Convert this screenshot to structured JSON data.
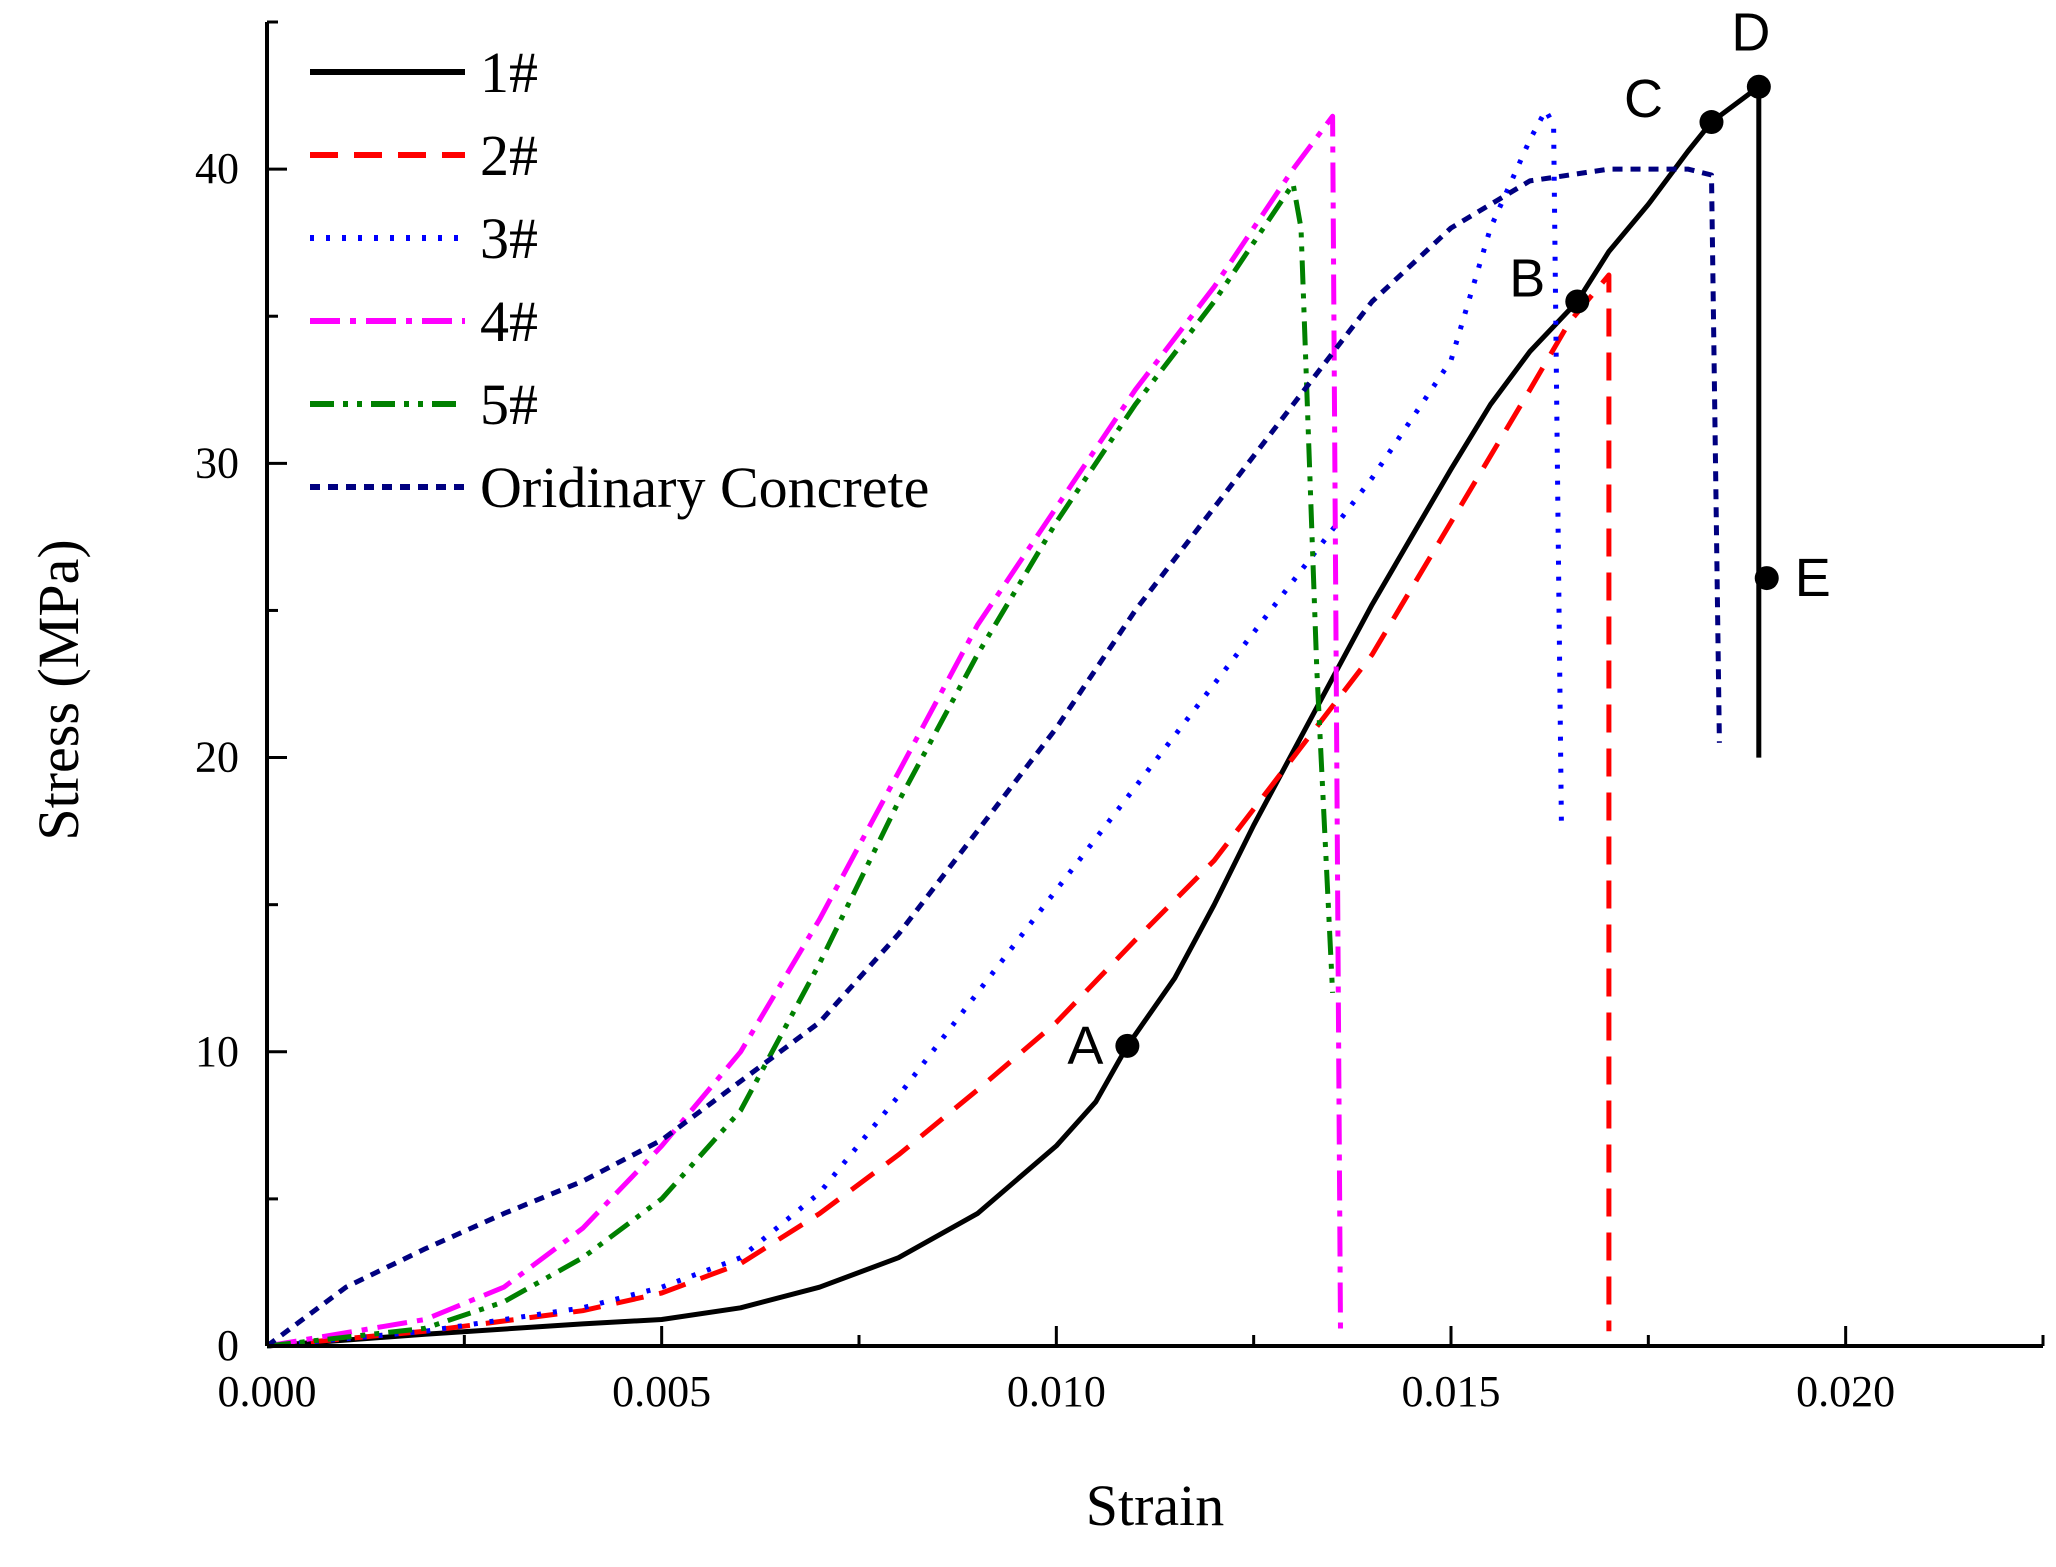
{
  "chart_data": {
    "type": "line",
    "title": "",
    "xlabel": "Strain",
    "ylabel": "Stress (MPa)",
    "xlim": [
      0,
      0.0225
    ],
    "ylim": [
      0,
      45
    ],
    "x_ticks": [
      0,
      0.005,
      0.01,
      0.015,
      0.02
    ],
    "x_tick_labels": [
      "0.000",
      "0.005",
      "0.010",
      "0.015",
      "0.020"
    ],
    "y_ticks": [
      0,
      10,
      20,
      30,
      40
    ],
    "y_tick_labels": [
      "0",
      "10",
      "20",
      "30",
      "40"
    ],
    "legend_position": "top-left",
    "series": [
      {
        "name": "1#",
        "color": "#000000",
        "style": "solid",
        "points": [
          [
            0,
            0
          ],
          [
            0.002,
            0.4
          ],
          [
            0.004,
            0.75
          ],
          [
            0.005,
            0.9
          ],
          [
            0.006,
            1.3
          ],
          [
            0.007,
            2.0
          ],
          [
            0.008,
            3.0
          ],
          [
            0.009,
            4.5
          ],
          [
            0.01,
            6.8
          ],
          [
            0.0105,
            8.3
          ],
          [
            0.0109,
            10.2
          ],
          [
            0.0115,
            12.5
          ],
          [
            0.012,
            15.0
          ],
          [
            0.0125,
            17.7
          ],
          [
            0.013,
            20.2
          ],
          [
            0.0135,
            22.7
          ],
          [
            0.014,
            25.2
          ],
          [
            0.0145,
            27.5
          ],
          [
            0.015,
            29.8
          ],
          [
            0.0155,
            32.0
          ],
          [
            0.016,
            33.8
          ],
          [
            0.0166,
            35.5
          ],
          [
            0.017,
            37.2
          ],
          [
            0.0175,
            38.8
          ],
          [
            0.018,
            40.6
          ],
          [
            0.0183,
            41.6
          ],
          [
            0.0188,
            42.6
          ],
          [
            0.0189,
            42.8
          ],
          [
            0.0189,
            26.1
          ],
          [
            0.0189,
            20.0
          ]
        ]
      },
      {
        "name": "2#",
        "color": "#ff0000",
        "style": "dashed",
        "points": [
          [
            0,
            0
          ],
          [
            0.002,
            0.5
          ],
          [
            0.004,
            1.2
          ],
          [
            0.005,
            1.8
          ],
          [
            0.006,
            2.8
          ],
          [
            0.007,
            4.5
          ],
          [
            0.008,
            6.5
          ],
          [
            0.009,
            8.7
          ],
          [
            0.01,
            11.0
          ],
          [
            0.011,
            13.8
          ],
          [
            0.012,
            16.5
          ],
          [
            0.013,
            20.0
          ],
          [
            0.014,
            23.5
          ],
          [
            0.015,
            28.0
          ],
          [
            0.016,
            32.5
          ],
          [
            0.0165,
            34.8
          ],
          [
            0.017,
            36.4
          ],
          [
            0.017,
            0.5
          ]
        ]
      },
      {
        "name": "3#",
        "color": "#0000ff",
        "style": "dotted",
        "points": [
          [
            0,
            0
          ],
          [
            0.002,
            0.5
          ],
          [
            0.004,
            1.3
          ],
          [
            0.005,
            2.0
          ],
          [
            0.006,
            3.0
          ],
          [
            0.007,
            5.2
          ],
          [
            0.008,
            8.5
          ],
          [
            0.009,
            12.0
          ],
          [
            0.01,
            15.5
          ],
          [
            0.011,
            19.0
          ],
          [
            0.012,
            22.5
          ],
          [
            0.013,
            26.0
          ],
          [
            0.014,
            29.5
          ],
          [
            0.015,
            33.5
          ],
          [
            0.0155,
            38.0
          ],
          [
            0.016,
            41.0
          ],
          [
            0.0162,
            42.0
          ],
          [
            0.0163,
            41.5
          ],
          [
            0.0164,
            17.5
          ]
        ]
      },
      {
        "name": "4#",
        "color": "#ff00ff",
        "style": "dashdot",
        "points": [
          [
            0,
            0
          ],
          [
            0.002,
            0.9
          ],
          [
            0.003,
            2.0
          ],
          [
            0.004,
            4.0
          ],
          [
            0.005,
            6.8
          ],
          [
            0.006,
            10.0
          ],
          [
            0.007,
            14.5
          ],
          [
            0.008,
            19.5
          ],
          [
            0.009,
            24.5
          ],
          [
            0.01,
            28.5
          ],
          [
            0.011,
            32.5
          ],
          [
            0.012,
            36.0
          ],
          [
            0.013,
            40.0
          ],
          [
            0.0135,
            41.8
          ],
          [
            0.0136,
            0.5
          ]
        ]
      },
      {
        "name": "5#",
        "color": "#008000",
        "style": "dashdotdot",
        "points": [
          [
            0,
            0
          ],
          [
            0.002,
            0.6
          ],
          [
            0.003,
            1.5
          ],
          [
            0.004,
            3.0
          ],
          [
            0.005,
            5.0
          ],
          [
            0.006,
            8.0
          ],
          [
            0.007,
            13.0
          ],
          [
            0.008,
            18.5
          ],
          [
            0.009,
            23.5
          ],
          [
            0.01,
            28.0
          ],
          [
            0.011,
            32.0
          ],
          [
            0.012,
            35.5
          ],
          [
            0.013,
            39.5
          ],
          [
            0.0131,
            38.0
          ],
          [
            0.0133,
            23.0
          ],
          [
            0.0135,
            12.0
          ]
        ]
      },
      {
        "name": "Oridinary Concrete",
        "color": "#000080",
        "style": "shortdash",
        "points": [
          [
            0,
            0
          ],
          [
            0.0005,
            1.0
          ],
          [
            0.001,
            2.0
          ],
          [
            0.002,
            3.3
          ],
          [
            0.003,
            4.5
          ],
          [
            0.004,
            5.6
          ],
          [
            0.005,
            7.0
          ],
          [
            0.006,
            9.0
          ],
          [
            0.007,
            11.0
          ],
          [
            0.008,
            14.0
          ],
          [
            0.009,
            17.5
          ],
          [
            0.01,
            21.0
          ],
          [
            0.011,
            25.0
          ],
          [
            0.012,
            28.5
          ],
          [
            0.013,
            32.0
          ],
          [
            0.014,
            35.5
          ],
          [
            0.015,
            38.0
          ],
          [
            0.016,
            39.6
          ],
          [
            0.017,
            40.0
          ],
          [
            0.018,
            40.0
          ],
          [
            0.0183,
            39.8
          ],
          [
            0.0184,
            20.5
          ]
        ]
      }
    ],
    "annotations": [
      {
        "label": "A",
        "x": 0.0109,
        "y": 10.2
      },
      {
        "label": "B",
        "x": 0.0166,
        "y": 35.5
      },
      {
        "label": "C",
        "x": 0.0183,
        "y": 41.6
      },
      {
        "label": "D",
        "x": 0.0189,
        "y": 42.8
      },
      {
        "label": "E",
        "x": 0.019,
        "y": 26.1
      }
    ]
  }
}
